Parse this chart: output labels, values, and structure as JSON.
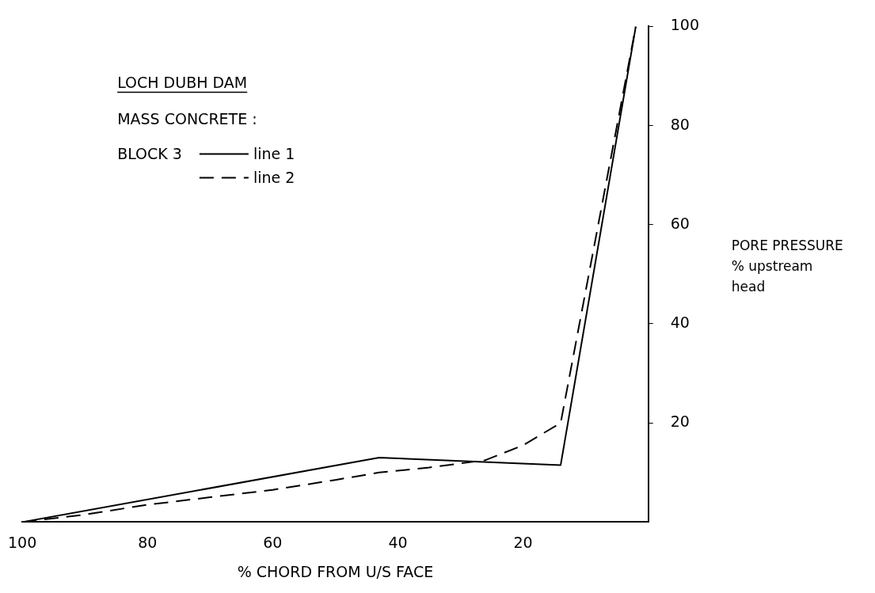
{
  "chart_data": {
    "type": "line",
    "title": "LOCH DUBH DAM",
    "subtitle": "MASS CONCRETE :",
    "legend_title": "BLOCK 3",
    "legend": "top left",
    "xlabel": "% CHORD FROM U/S FACE",
    "ylabel": "PORE PRESSURE\n% upstream\nhead",
    "xlim": [
      100,
      0
    ],
    "xticks": [
      100,
      80,
      60,
      40,
      20
    ],
    "ylim": [
      0,
      100
    ],
    "yticks": [
      20,
      40,
      60,
      80,
      100
    ],
    "grid": false,
    "series": [
      {
        "name": "line 1",
        "color": "#000000",
        "line_style": "solid",
        "x": [
          100,
          43,
          14,
          2
        ],
        "values": [
          0,
          13,
          11.5,
          100
        ]
      },
      {
        "name": "line 2",
        "color": "#000000",
        "line_style": "dashed",
        "x": [
          100,
          90,
          80,
          70,
          60,
          50,
          43,
          35,
          26,
          20,
          14,
          2
        ],
        "values": [
          0,
          1.5,
          3.5,
          5,
          6.5,
          8.5,
          10,
          11,
          12.5,
          15.5,
          20,
          100
        ]
      }
    ]
  }
}
